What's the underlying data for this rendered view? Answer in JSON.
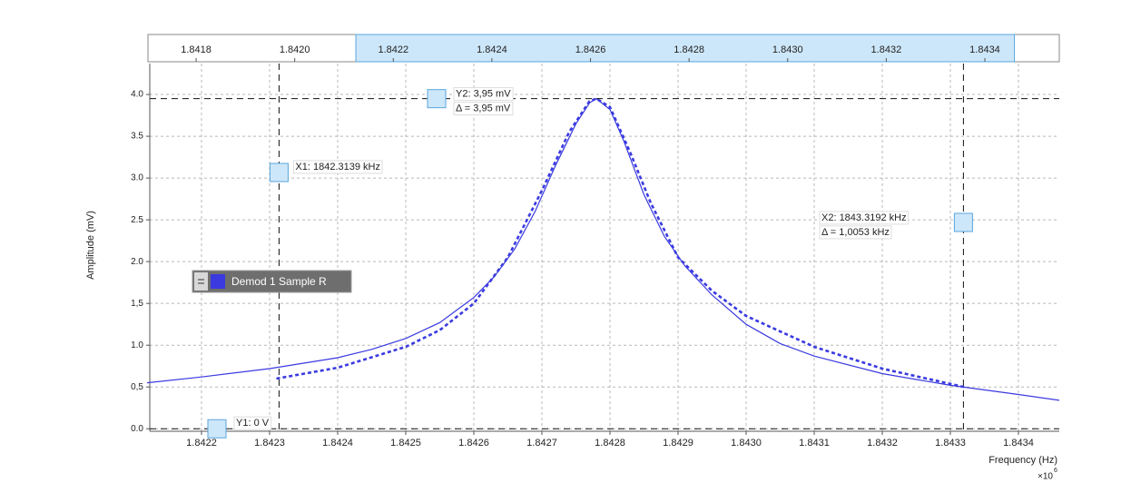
{
  "chart_data": {
    "type": "line",
    "x_label": "Frequency (Hz)",
    "x_multiplier": "×10",
    "x_exponent": "6",
    "y_label": "Amplitude (mV)",
    "xlim": [
      1.842124,
      1.84346
    ],
    "xticks": [
      1.8422,
      1.8423,
      1.8424,
      1.8425,
      1.8426,
      1.8427,
      1.8428,
      1.8429,
      {
        "value": 1.843,
        "label": "1.8430"
      },
      1.8431,
      1.8432,
      1.8433,
      1.8434
    ],
    "ylim": [
      -0.03,
      4.37
    ],
    "yticks": [
      {
        "value": 0,
        "label": "0.0"
      },
      {
        "value": 0.5,
        "label": "0,5"
      },
      {
        "value": 1,
        "label": "1.0"
      },
      {
        "value": 1.5,
        "label": "1,5"
      },
      {
        "value": 2,
        "label": "2.0"
      },
      {
        "value": 2.5,
        "label": "2.5"
      },
      {
        "value": 3,
        "label": "3.0"
      },
      {
        "value": 3.5,
        "label": "3.5"
      },
      {
        "value": 4,
        "label": "4.0"
      }
    ],
    "grid": true,
    "series": [
      {
        "name": "Demod 1 Sample R",
        "color": "#3a3ae0",
        "style": "solid",
        "x": [
          1.84212,
          1.8422,
          1.8423,
          1.8424,
          1.84245,
          1.8425,
          1.84255,
          1.8426,
          1.84263,
          1.84266,
          1.84269,
          1.84272,
          1.84275,
          1.84277,
          1.84278,
          1.8428,
          1.84282,
          1.84285,
          1.84288,
          1.84291,
          1.84295,
          1.843,
          1.84305,
          1.8431,
          1.8432,
          1.8433,
          1.8434,
          1.84346
        ],
        "values": [
          0.55,
          0.62,
          0.72,
          0.85,
          0.95,
          1.08,
          1.27,
          1.57,
          1.82,
          2.15,
          2.6,
          3.15,
          3.65,
          3.9,
          3.95,
          3.82,
          3.45,
          2.8,
          2.3,
          1.95,
          1.6,
          1.25,
          1.02,
          0.87,
          0.66,
          0.52,
          0.41,
          0.34
        ]
      },
      {
        "color": "#3a3ae0",
        "style": "dashed",
        "x": [
          1.84231,
          1.8424,
          1.8425,
          1.84255,
          1.8426,
          1.84265,
          1.8427,
          1.84274,
          1.84277,
          1.84278,
          1.8428,
          1.84283,
          1.84286,
          1.8429,
          1.84295,
          1.843,
          1.8431,
          1.8432,
          1.84332
        ],
        "values": [
          0.6,
          0.73,
          0.98,
          1.18,
          1.5,
          2.05,
          2.85,
          3.55,
          3.92,
          3.95,
          3.85,
          3.3,
          2.7,
          2.05,
          1.65,
          1.35,
          0.98,
          0.72,
          0.5
        ]
      }
    ],
    "overview": {
      "xlim": [
        1.841706,
        1.843551
      ],
      "xticks": [
        1.8418,
        {
          "value": 1.842,
          "label": "1.8420"
        },
        1.8422,
        1.8424,
        1.8426,
        1.8428,
        {
          "value": 1.843,
          "label": "1.8430"
        },
        1.8432,
        1.8434
      ]
    },
    "cursors": {
      "x1": {
        "value": 1.8423139,
        "label": "X1: 1842.3139 kHz"
      },
      "x2": {
        "value": 1.8433192,
        "label": "X2: 1843.3192 kHz",
        "delta": "Δ = 1,0053 kHz"
      },
      "y1": {
        "value": 0,
        "label": "Y1: 0 V"
      },
      "y2": {
        "value": 3.95,
        "label": "Y2: 3,95 mV",
        "delta": "Δ = 3,95 mV"
      }
    }
  }
}
